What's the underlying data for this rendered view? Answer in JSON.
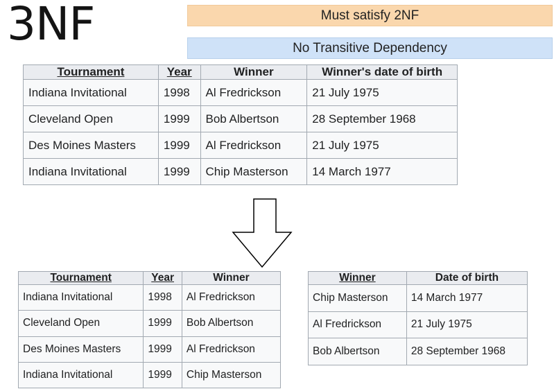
{
  "title": "3NF",
  "rules": [
    "Must satisfy 2NF",
    "No Transitive Dependency"
  ],
  "original_table": {
    "headers": [
      "Tournament",
      "Year",
      "Winner",
      "Winner's date of birth"
    ],
    "rows": [
      [
        "Indiana Invitational",
        "1998",
        "Al Fredrickson",
        "21 July 1975"
      ],
      [
        "Cleveland Open",
        "1999",
        "Bob Albertson",
        "28 September 1968"
      ],
      [
        "Des Moines Masters",
        "1999",
        "Al Fredrickson",
        "21 July 1975"
      ],
      [
        "Indiana Invitational",
        "1999",
        "Chip Masterson",
        "14 March 1977"
      ]
    ]
  },
  "tournament_winners_table": {
    "headers": [
      "Tournament",
      "Year",
      "Winner"
    ],
    "rows": [
      [
        "Indiana Invitational",
        "1998",
        "Al Fredrickson"
      ],
      [
        "Cleveland Open",
        "1999",
        "Bob Albertson"
      ],
      [
        "Des Moines Masters",
        "1999",
        "Al Fredrickson"
      ],
      [
        "Indiana Invitational",
        "1999",
        "Chip Masterson"
      ]
    ]
  },
  "winner_dob_table": {
    "headers": [
      "Winner",
      "Date of birth"
    ],
    "rows": [
      [
        "Chip Masterson",
        "14 March 1977"
      ],
      [
        "Al Fredrickson",
        "21 July 1975"
      ],
      [
        "Bob Albertson",
        "28 September 1968"
      ]
    ]
  }
}
